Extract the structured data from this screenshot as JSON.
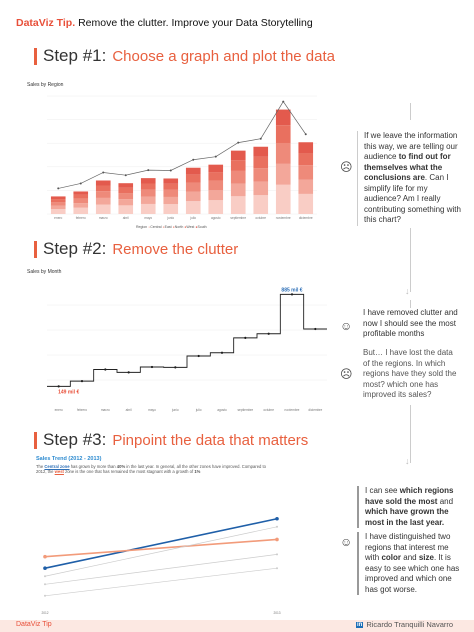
{
  "header": {
    "tip": "DataViz Tip.",
    "text": "Remove the clutter. Improve your Data Storytelling"
  },
  "steps": [
    {
      "title": "Step #1:",
      "subtitle": "Choose a graph and plot the data"
    },
    {
      "title": "Step #2:",
      "subtitle": "Remove the clutter"
    },
    {
      "title": "Step #3:",
      "subtitle": "Pinpoint the data that matters"
    }
  ],
  "chart1": {
    "title": "Sales by Region",
    "legend": {
      "label": "Region",
      "items": [
        "Central",
        "East",
        "North",
        "West",
        "South"
      ]
    }
  },
  "chart2": {
    "title": "Sales by Month",
    "max_label": "885 mil €",
    "min_label": "149 mil €"
  },
  "chart3": {
    "title": "Sales Trend (2012 - 2013)",
    "text_parts": [
      "The ",
      "Central zone",
      " has grown by more than ",
      "40%",
      " in the last year. In general, all the other zones have improved. Compared to 2012, the ",
      "west",
      " zone is the one that has remained the most stagnant with a growth of ",
      "1%"
    ],
    "x_start": "2012",
    "x_end": "2013"
  },
  "panels": [
    {
      "parts": [
        "If we leave the information this way, we are telling our audience ",
        "to find out for themselves what the conclusions are",
        ". Can I simplify life for my audience? Am I really contributing something with this chart?"
      ]
    },
    {
      "text": "I have removed clutter and now I should see the most profitable months"
    },
    {
      "text": "But… I have lost the data of the regions. In which regions have they sold the most? which one has improved its sales?"
    },
    {
      "parts": [
        "I can see ",
        "which regions have sold the most",
        " and ",
        "which have grown the most in the last year.",
        ""
      ]
    },
    {
      "parts": [
        "I have distinguished two regions that interest me with ",
        "color",
        " and ",
        "size",
        ". It is easy to see which one has improved and which one has got worse."
      ]
    }
  ],
  "footer": {
    "left": "DataViz Tip",
    "right": "Ricardo Tranquilli Navarro",
    "li": "in"
  },
  "chart_data": [
    {
      "type": "bar",
      "title": "Sales by Region",
      "categories": [
        "enero",
        "febrero",
        "marzo",
        "abril",
        "mayo",
        "junio",
        "julio",
        "agosto",
        "septiembre",
        "octubre",
        "noviembre",
        "diciembre"
      ],
      "totals": [
        149,
        191,
        284,
        261,
        304,
        301,
        392,
        418,
        537,
        570,
        885,
        608
      ],
      "series_names": [
        "Central",
        "East",
        "North",
        "West",
        "South"
      ],
      "ylim": [
        0,
        1000
      ],
      "line_total": true,
      "colors": [
        "#f9cdc5",
        "#f3a79a",
        "#ee8a7a",
        "#e9705f",
        "#e35a4d"
      ]
    },
    {
      "type": "line",
      "title": "Sales by Month",
      "step": true,
      "categories": [
        "enero",
        "febrero",
        "marzo",
        "abril",
        "mayo",
        "junio",
        "julio",
        "agosto",
        "septiembre",
        "octubre",
        "noviembre",
        "diciembre"
      ],
      "values": [
        149,
        191,
        284,
        261,
        304,
        301,
        392,
        418,
        537,
        570,
        885,
        608
      ],
      "ylim": [
        0,
        1000
      ],
      "color": "#222"
    },
    {
      "type": "line",
      "title": "Sales Trend (2012 - 2013)",
      "x": [
        "2012",
        "2013"
      ],
      "series": [
        {
          "values": [
            0.32,
            0.75
          ],
          "color": "#1f5fa8",
          "highlight": true
        },
        {
          "values": [
            0.42,
            0.57
          ],
          "color": "#f29b7a",
          "highlight": true
        },
        {
          "values": [
            0.25,
            0.68
          ],
          "color": "#cccccc"
        },
        {
          "values": [
            0.18,
            0.44
          ],
          "color": "#cccccc"
        },
        {
          "values": [
            0.08,
            0.32
          ],
          "color": "#cccccc"
        }
      ]
    }
  ]
}
